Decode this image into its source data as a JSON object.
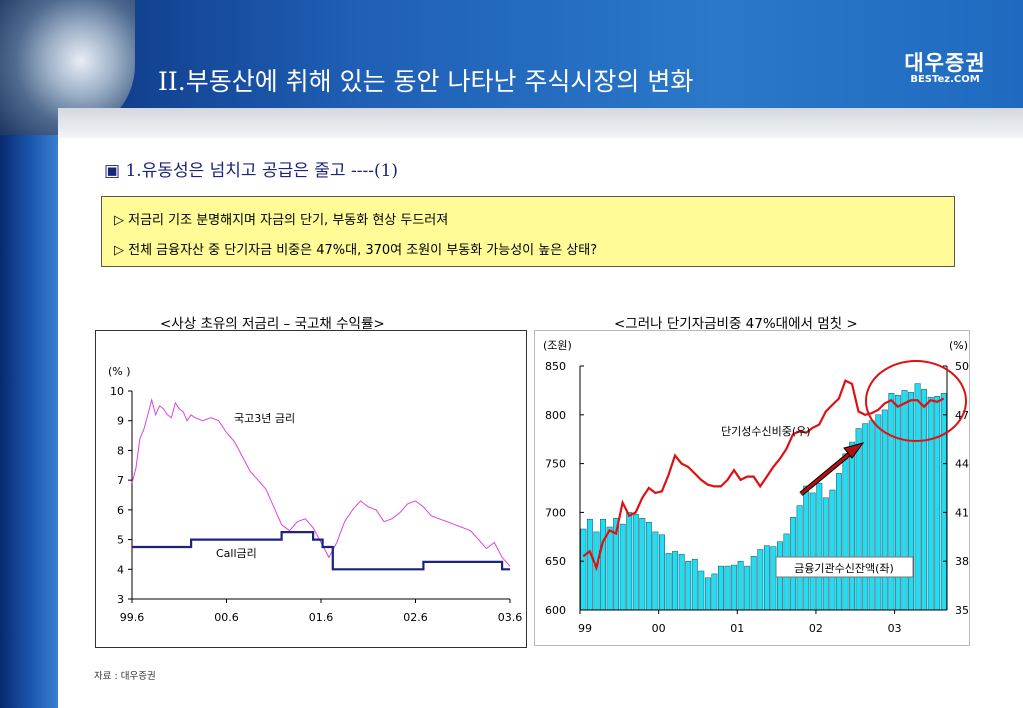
{
  "header": {
    "title": "II.부동산에 취해 있는 동안 나타난 주식시장의 변화",
    "brand_name": "대우증권",
    "brand_url": "BESTez.COM"
  },
  "section": {
    "title": "▣ 1.유동성은 넘치고 공급은 줄고 ----(1)"
  },
  "notes": [
    "▷  저금리 기조 분명해지며 자금의 단기, 부동화 현상 두드러져",
    "▷ 전체 금융자산 중 단기자금 비중은 47%대, 370여 조원이 부동화 가능성이 높은 상태?"
  ],
  "colors": {
    "rate_bond": "#e040e0",
    "rate_call": "#1a237e",
    "bar_fill": "#22dcf0",
    "ratio_line": "#dd1111",
    "highlight": "#dd1111"
  },
  "chart_data": [
    {
      "type": "line",
      "title": "<사상 초유의 저금리 – 국고채 수익률>",
      "ylabel": "(% )",
      "ylim": [
        3,
        10
      ],
      "yticks": [
        3,
        4,
        5,
        6,
        7,
        8,
        9,
        10
      ],
      "xticks": [
        "99.6",
        "00.6",
        "01.6",
        "02.6",
        "03.6"
      ],
      "xlim": [
        0,
        48
      ],
      "series": [
        {
          "name": "국고3년 금리",
          "x": [
            0,
            0.5,
            1,
            1.5,
            2,
            2.5,
            3,
            3.5,
            4,
            4.5,
            5,
            5.5,
            6,
            6.5,
            7,
            7.5,
            8,
            9,
            10,
            11,
            12,
            13,
            14,
            15,
            16,
            17,
            18,
            19,
            20,
            21,
            22,
            23,
            24,
            25,
            26,
            27,
            28,
            29,
            30,
            31,
            32,
            33,
            34,
            35,
            36,
            37,
            38,
            39,
            40,
            41,
            42,
            43,
            44,
            45,
            46,
            47,
            48
          ],
          "y": [
            6.9,
            7.4,
            8.4,
            8.7,
            9.2,
            9.7,
            9.2,
            9.5,
            9.4,
            9.2,
            9.1,
            9.6,
            9.4,
            9.3,
            9.0,
            9.2,
            9.1,
            9.0,
            9.1,
            9.0,
            8.6,
            8.3,
            7.8,
            7.3,
            7.0,
            6.7,
            6.1,
            5.5,
            5.3,
            5.6,
            5.7,
            5.4,
            4.9,
            4.4,
            4.9,
            5.6,
            6.0,
            6.3,
            6.1,
            6.0,
            5.6,
            5.7,
            5.9,
            6.2,
            6.3,
            6.1,
            5.8,
            5.7,
            5.6,
            5.5,
            5.4,
            5.3,
            5.0,
            4.7,
            4.9,
            4.4,
            4.1
          ]
        },
        {
          "name": "Call금리",
          "x": [
            0,
            7.5,
            7.5,
            14.5,
            14.5,
            19,
            19,
            23,
            23,
            24.2,
            24.2,
            25.5,
            25.5,
            31,
            31,
            37,
            37,
            47,
            47,
            48
          ],
          "y": [
            4.75,
            4.75,
            5.0,
            5.0,
            5.0,
            5.0,
            5.25,
            5.25,
            5.0,
            5.0,
            4.75,
            4.75,
            4.0,
            4.0,
            4.0,
            4.0,
            4.25,
            4.25,
            4.0,
            4.0
          ]
        }
      ],
      "annotations": [
        "국고3년 금리",
        "Call금리"
      ]
    },
    {
      "type": "bar",
      "title": "<그러나 단기자금비중 47%대에서 멈칫 >",
      "ylabel": "(조원)",
      "y2label": "(%)",
      "ylim": [
        600,
        850
      ],
      "y2lim": [
        35,
        50
      ],
      "yticks": [
        600,
        650,
        700,
        750,
        800,
        850
      ],
      "y2ticks": [
        35,
        38,
        41,
        44,
        47,
        50
      ],
      "xticks": [
        "99",
        "00",
        "01",
        "02",
        "03"
      ],
      "series": [
        {
          "name": "금융기관수신잔액(좌)",
          "axis": "left",
          "values": [
            683,
            693,
            680,
            693,
            685,
            694,
            688,
            700,
            698,
            694,
            690,
            680,
            677,
            658,
            660,
            657,
            650,
            652,
            640,
            633,
            637,
            645,
            645,
            646,
            650,
            645,
            655,
            662,
            666,
            665,
            670,
            678,
            695,
            707,
            727,
            720,
            730,
            715,
            723,
            740,
            760,
            772,
            786,
            791,
            794,
            800,
            805,
            822,
            820,
            825,
            823,
            832,
            826,
            818,
            819,
            822
          ]
        },
        {
          "name": "단기성수신비중(우)",
          "axis": "right",
          "values": [
            38.3,
            38.6,
            37.6,
            39.2,
            39.9,
            39.7,
            41.6,
            40.8,
            41.0,
            41.9,
            42.5,
            42.2,
            42.3,
            43.3,
            44.5,
            44.0,
            43.8,
            43.4,
            43.0,
            42.7,
            42.6,
            42.6,
            43.0,
            43.6,
            43.0,
            43.2,
            43.2,
            42.6,
            43.2,
            43.8,
            44.3,
            44.9,
            45.8,
            46.0,
            45.9,
            46.2,
            46.4,
            47.2,
            47.6,
            48.0,
            49.1,
            48.9,
            47.2,
            47.0,
            47.1,
            47.3,
            47.7,
            47.9,
            47.5,
            47.7,
            47.9,
            47.9,
            47.5,
            47.9,
            47.8,
            48.0
          ]
        }
      ],
      "annotations": [
        "단기성수신비중(우)",
        "금융기관수신잔액(좌)"
      ]
    }
  ],
  "source": "자료 : 대우증권"
}
